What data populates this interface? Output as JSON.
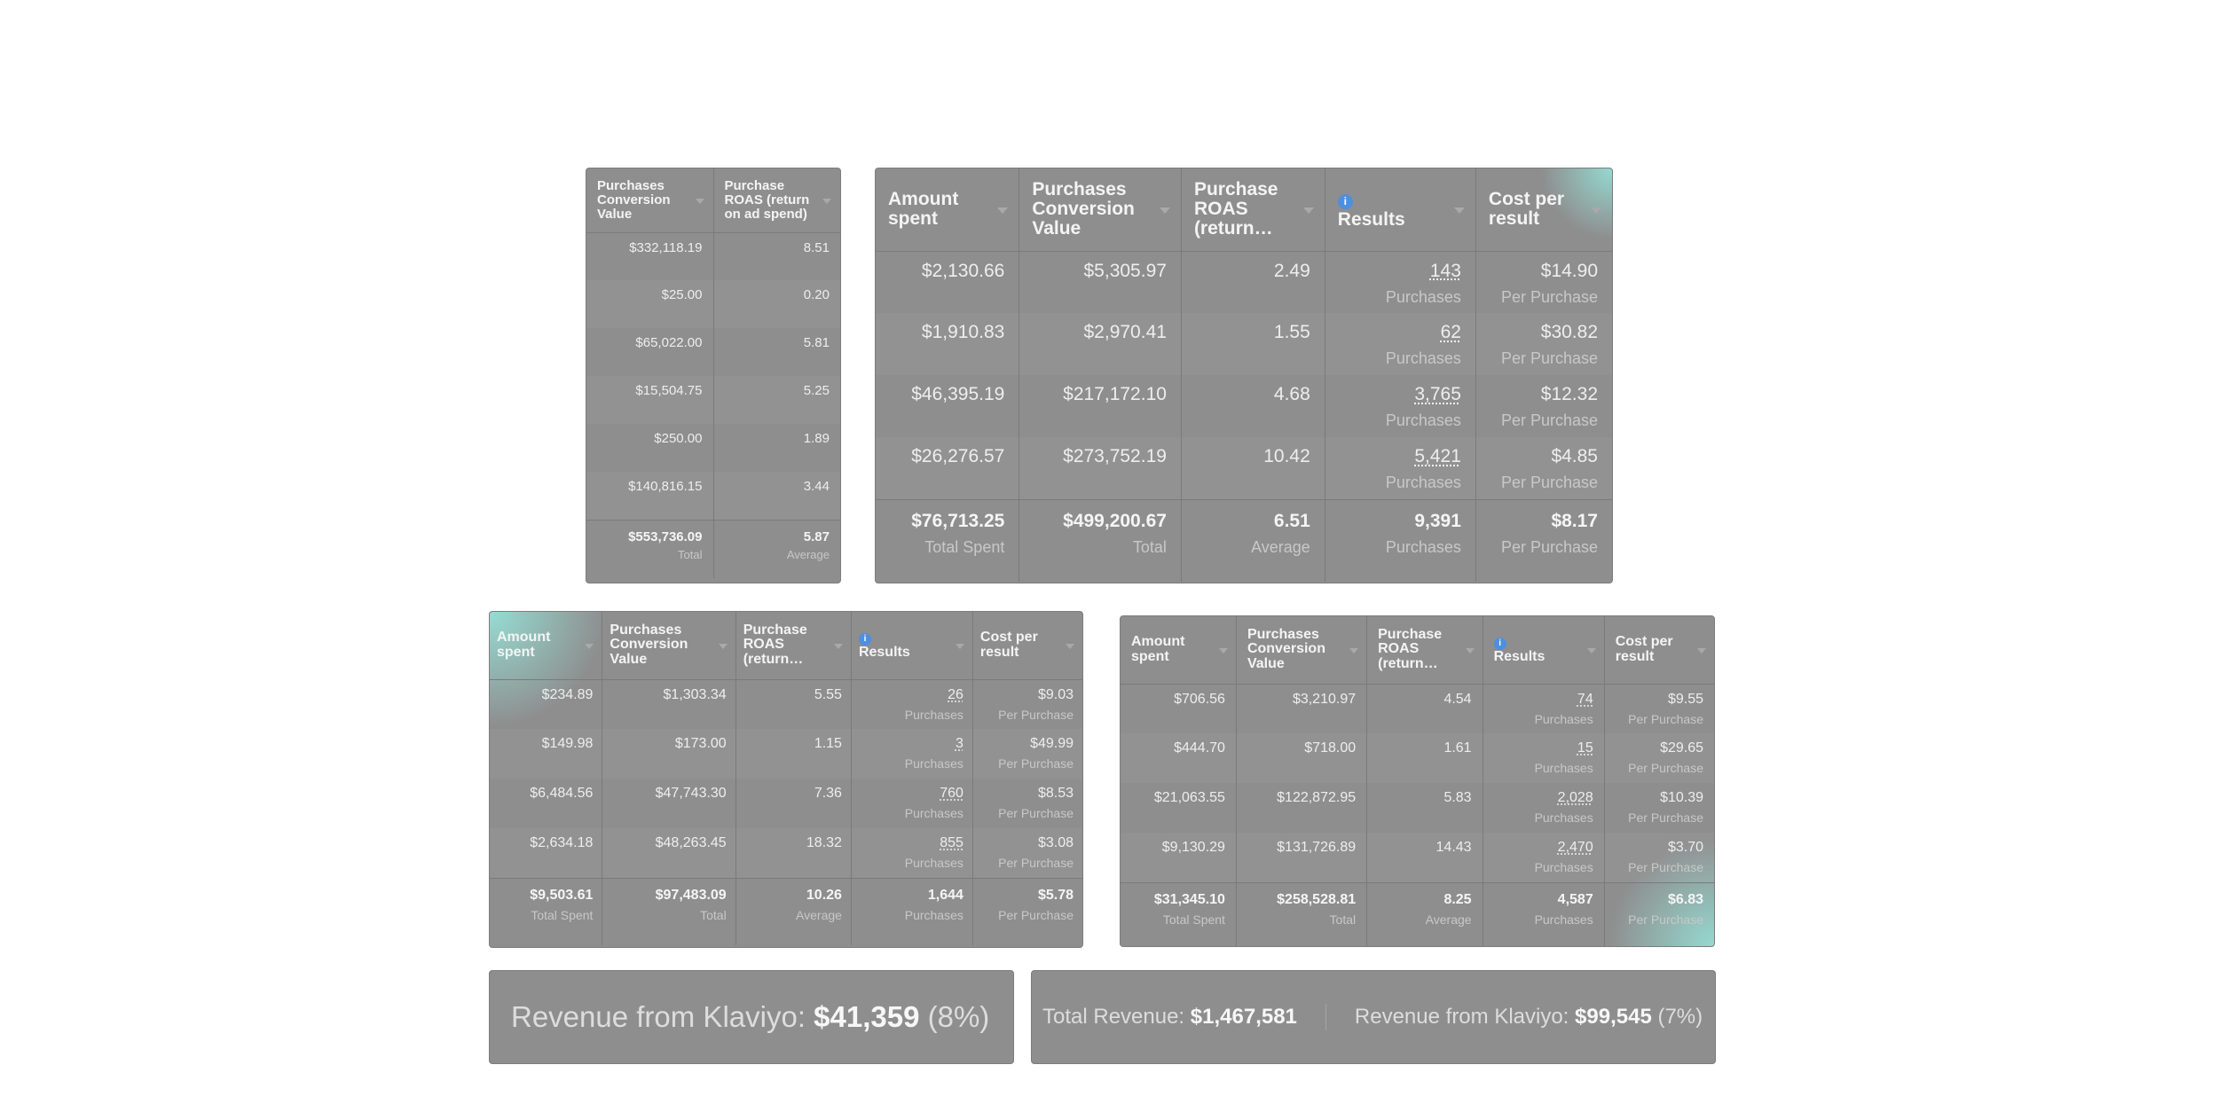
{
  "panel_a": {
    "headers": [
      "Purchases Conversion Value",
      "Purchase ROAS (return on ad spend)"
    ],
    "rows": [
      [
        "$332,118.19",
        "8.51"
      ],
      [
        "$25.00",
        "0.20"
      ],
      [
        "$65,022.00",
        "5.81"
      ],
      [
        "$15,504.75",
        "5.25"
      ],
      [
        "$250.00",
        "1.89"
      ],
      [
        "$140,816.15",
        "3.44"
      ]
    ],
    "total": [
      {
        "value": "$553,736.09",
        "sub": "Total"
      },
      {
        "value": "5.87",
        "sub": "Average"
      }
    ]
  },
  "panel_b": {
    "headers": [
      "Amount spent",
      "Purchases Conversion Value",
      "Purchase ROAS (return…",
      "Results",
      "Cost per result"
    ],
    "rows": [
      {
        "amount": "$2,130.66",
        "pcv": "$5,305.97",
        "roas": "2.49",
        "results": "143",
        "results_sub": "Purchases",
        "cpr": "$14.90",
        "cpr_sub": "Per Purchase"
      },
      {
        "amount": "$1,910.83",
        "pcv": "$2,970.41",
        "roas": "1.55",
        "results": "62",
        "results_sub": "Purchases",
        "cpr": "$30.82",
        "cpr_sub": "Per Purchase"
      },
      {
        "amount": "$46,395.19",
        "pcv": "$217,172.10",
        "roas": "4.68",
        "results": "3,765",
        "results_sub": "Purchases",
        "cpr": "$12.32",
        "cpr_sub": "Per Purchase"
      },
      {
        "amount": "$26,276.57",
        "pcv": "$273,752.19",
        "roas": "10.42",
        "results": "5,421",
        "results_sub": "Purchases",
        "cpr": "$4.85",
        "cpr_sub": "Per Purchase"
      }
    ],
    "total": [
      {
        "value": "$76,713.25",
        "sub": "Total Spent"
      },
      {
        "value": "$499,200.67",
        "sub": "Total"
      },
      {
        "value": "6.51",
        "sub": "Average"
      },
      {
        "value": "9,391",
        "sub": "Purchases"
      },
      {
        "value": "$8.17",
        "sub": "Per Purchase"
      }
    ]
  },
  "panel_c": {
    "headers": [
      "Amount spent",
      "Purchases Conversion Value",
      "Purchase ROAS (return…",
      "Results",
      "Cost per result"
    ],
    "rows": [
      {
        "amount": "$234.89",
        "pcv": "$1,303.34",
        "roas": "5.55",
        "results": "26",
        "results_sub": "Purchases",
        "cpr": "$9.03",
        "cpr_sub": "Per Purchase"
      },
      {
        "amount": "$149.98",
        "pcv": "$173.00",
        "roas": "1.15",
        "results": "3",
        "results_sub": "Purchases",
        "cpr": "$49.99",
        "cpr_sub": "Per Purchase"
      },
      {
        "amount": "$6,484.56",
        "pcv": "$47,743.30",
        "roas": "7.36",
        "results": "760",
        "results_sub": "Purchases",
        "cpr": "$8.53",
        "cpr_sub": "Per Purchase"
      },
      {
        "amount": "$2,634.18",
        "pcv": "$48,263.45",
        "roas": "18.32",
        "results": "855",
        "results_sub": "Purchases",
        "cpr": "$3.08",
        "cpr_sub": "Per Purchase"
      }
    ],
    "total": [
      {
        "value": "$9,503.61",
        "sub": "Total Spent"
      },
      {
        "value": "$97,483.09",
        "sub": "Total"
      },
      {
        "value": "10.26",
        "sub": "Average"
      },
      {
        "value": "1,644",
        "sub": "Purchases"
      },
      {
        "value": "$5.78",
        "sub": "Per Purchase"
      }
    ]
  },
  "panel_d": {
    "headers": [
      "Amount spent",
      "Purchases Conversion Value",
      "Purchase ROAS (return…",
      "Results",
      "Cost per result"
    ],
    "rows": [
      {
        "amount": "$706.56",
        "pcv": "$3,210.97",
        "roas": "4.54",
        "results": "74",
        "results_sub": "Purchases",
        "cpr": "$9.55",
        "cpr_sub": "Per Purchase"
      },
      {
        "amount": "$444.70",
        "pcv": "$718.00",
        "roas": "1.61",
        "results": "15",
        "results_sub": "Purchases",
        "cpr": "$29.65",
        "cpr_sub": "Per Purchase"
      },
      {
        "amount": "$21,063.55",
        "pcv": "$122,872.95",
        "roas": "5.83",
        "results": "2,028",
        "results_sub": "Purchases",
        "cpr": "$10.39",
        "cpr_sub": "Per Purchase"
      },
      {
        "amount": "$9,130.29",
        "pcv": "$131,726.89",
        "roas": "14.43",
        "results": "2,470",
        "results_sub": "Purchases",
        "cpr": "$3.70",
        "cpr_sub": "Per Purchase"
      }
    ],
    "total": [
      {
        "value": "$31,345.10",
        "sub": "Total Spent"
      },
      {
        "value": "$258,528.81",
        "sub": "Total"
      },
      {
        "value": "8.25",
        "sub": "Average"
      },
      {
        "value": "4,587",
        "sub": "Purchases"
      },
      {
        "value": "$6.83",
        "sub": "Per Purchase"
      }
    ]
  },
  "revenue_left": {
    "label": "Revenue from Klaviyo:",
    "value": "$41,359",
    "pct": "(8%)"
  },
  "revenue_right": {
    "total_label": "Total Revenue:",
    "total_value": "$1,467,581",
    "klaviyo_label": "Revenue from Klaviyo:",
    "klaviyo_value": "$99,545",
    "klaviyo_pct": "(7%)"
  },
  "icons": {
    "info_icon_glyph": "i",
    "info_icon_color": "#4d8fe0"
  }
}
